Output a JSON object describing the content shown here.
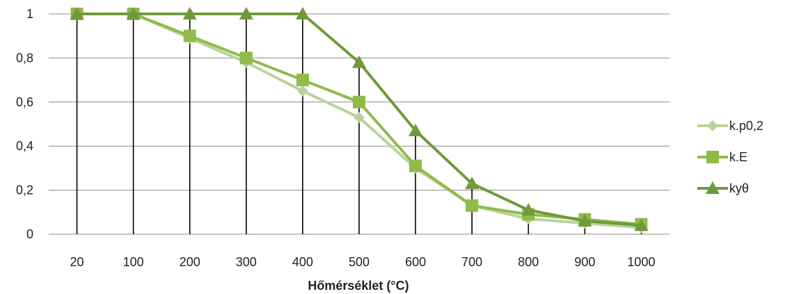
{
  "chart_data": {
    "type": "line",
    "title": "",
    "xlabel": "Hőmérséklet (°C)",
    "ylabel": "",
    "categories": [
      "20",
      "100",
      "200",
      "300",
      "400",
      "500",
      "600",
      "700",
      "800",
      "900",
      "1000"
    ],
    "ylim": [
      0,
      1
    ],
    "yticks": [
      {
        "value": 0,
        "label": "0"
      },
      {
        "value": 0.2,
        "label": "0,2"
      },
      {
        "value": 0.4,
        "label": "0,4"
      },
      {
        "value": 0.6,
        "label": "0,6"
      },
      {
        "value": 0.8,
        "label": "0,8"
      },
      {
        "value": 1,
        "label": "1"
      }
    ],
    "grid": "horizontal",
    "drop_lines": true,
    "legend_position": "right",
    "series": [
      {
        "name": "k.p0,2",
        "color": "#b9d39b",
        "marker": "diamond",
        "values": [
          1,
          1,
          0.89,
          0.78,
          0.65,
          0.53,
          0.3,
          0.13,
          0.07,
          0.05,
          0.03
        ]
      },
      {
        "name": "k.E",
        "color": "#8ebb4a",
        "marker": "square",
        "values": [
          1,
          1,
          0.9,
          0.8,
          0.7,
          0.6,
          0.31,
          0.13,
          0.09,
          0.0675,
          0.045
        ]
      },
      {
        "name": "kyθ",
        "color": "#6f9a3c",
        "marker": "triangle",
        "values": [
          1,
          1,
          1,
          1,
          1,
          0.78,
          0.47,
          0.23,
          0.11,
          0.06,
          0.04
        ]
      }
    ]
  }
}
